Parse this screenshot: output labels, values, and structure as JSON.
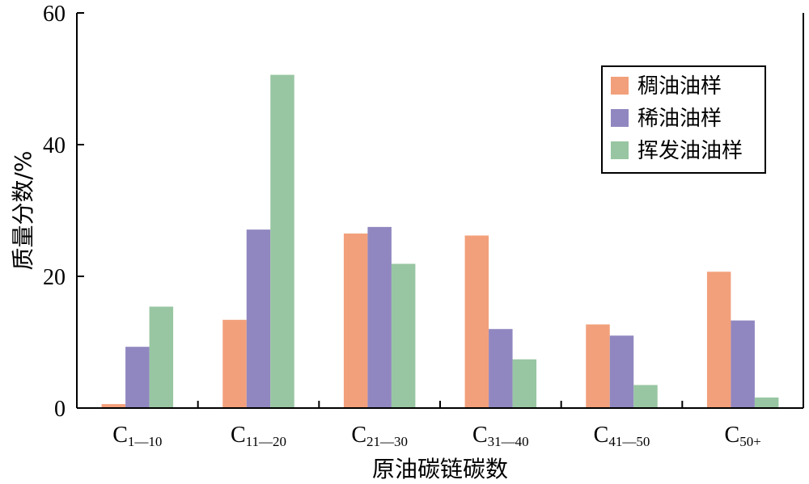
{
  "chart_data": {
    "type": "bar",
    "categories": [
      {
        "main": "C",
        "sub": "1—10"
      },
      {
        "main": "C",
        "sub": "11—20"
      },
      {
        "main": "C",
        "sub": "21—30"
      },
      {
        "main": "C",
        "sub": "31—40"
      },
      {
        "main": "C",
        "sub": "41—50"
      },
      {
        "main": "C",
        "sub": "50+"
      }
    ],
    "series": [
      {
        "name": "稠油油样",
        "color": "#f2a07b",
        "values": [
          0.6,
          13.4,
          26.5,
          26.2,
          12.7,
          20.7
        ]
      },
      {
        "name": "稀油油样",
        "color": "#9187c0",
        "values": [
          9.3,
          27.1,
          27.5,
          12.0,
          11.0,
          13.3
        ]
      },
      {
        "name": "挥发油油样",
        "color": "#98c6a2",
        "values": [
          15.4,
          50.6,
          21.9,
          7.4,
          3.5,
          1.6
        ]
      }
    ],
    "title": "",
    "xlabel": "原油碳链碳数",
    "ylabel": "质量分数/%",
    "ylim": [
      0,
      60
    ],
    "yticks": [
      0,
      20,
      40,
      60
    ],
    "grid": false,
    "legend_position": "top-right"
  }
}
